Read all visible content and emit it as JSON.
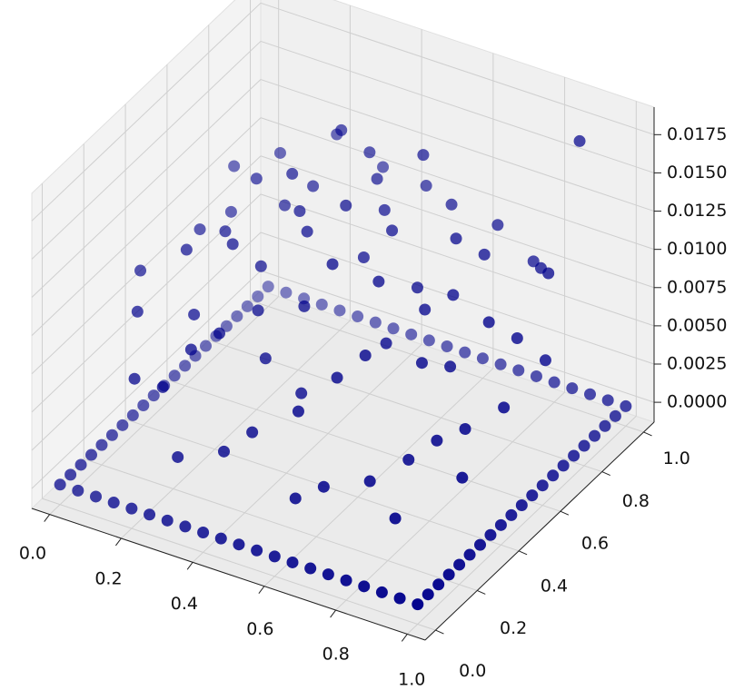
{
  "chart_data": {
    "type": "scatter3d",
    "color": "#00008b",
    "grid": true,
    "xlim": [
      -0.05,
      1.05
    ],
    "ylim": [
      -0.05,
      1.05
    ],
    "zlim": [
      -0.0013,
      0.0193
    ],
    "xticks": [
      {
        "value": 0,
        "label": "0.0"
      },
      0.2,
      0.4,
      0.6,
      0.8,
      {
        "value": 1,
        "label": "1.0"
      }
    ],
    "yticks": [
      {
        "value": 0,
        "label": "0.0"
      },
      0.2,
      0.4,
      0.6,
      0.8,
      {
        "value": 1,
        "label": "1.0"
      }
    ],
    "zticks": [
      {
        "value": 0,
        "label": "0.0000"
      },
      0.0025,
      {
        "value": 0.005,
        "label": "0.0050"
      },
      0.0075,
      {
        "value": 0.01,
        "label": "0.0100"
      },
      0.0125,
      {
        "value": 0.015,
        "label": "0.0150"
      },
      0.0175
    ],
    "x": [
      0,
      0.05,
      0.1,
      0.15,
      0.2,
      0.25,
      0.3,
      0.35,
      0.4,
      0.45,
      0.5,
      0.55,
      0.6,
      0.65,
      0.7,
      0.75,
      0.8,
      0.85,
      0.9,
      0.95,
      1,
      1,
      1,
      1,
      1,
      1,
      1,
      1,
      1,
      1,
      1,
      1,
      1,
      1,
      1,
      1,
      1,
      1,
      1,
      1,
      1,
      0.95,
      0.9,
      0.85,
      0.8,
      0.75,
      0.7,
      0.65,
      0.6,
      0.55,
      0.5,
      0.45,
      0.4,
      0.35,
      0.3,
      0.25,
      0.2,
      0.15,
      0.1,
      0.05,
      0,
      0,
      0,
      0,
      0,
      0,
      0,
      0,
      0,
      0,
      0,
      0,
      0,
      0,
      0,
      0,
      0,
      0,
      0,
      0,
      0.05,
      0.1,
      0.15,
      0.1,
      0.2,
      0.25,
      0.3,
      0.35,
      0.4,
      0.45,
      0.5,
      0.55,
      0.6,
      0.65,
      0.7,
      0.75,
      0.8,
      0.85,
      0.9,
      0.95,
      0.2,
      0.3,
      0.4,
      0.5,
      0.6,
      0.7,
      0.8,
      0.9,
      0.15,
      0.25,
      0.35,
      0.45,
      0.55,
      0.65,
      0.75,
      0.85,
      0.95,
      0.6,
      0.4,
      0.3,
      0.5,
      0.45,
      0.55,
      0.35,
      0.25,
      0.65,
      0.75,
      0.85,
      0.95,
      0.9,
      0.8,
      0.7,
      0.6,
      0.5,
      0.4,
      0.3,
      0.2,
      0.1,
      0.05,
      0.15,
      0.25,
      0.35,
      0.45,
      0.65,
      0.75,
      0.85,
      0.9,
      0.2,
      0.3,
      0.5
    ],
    "y": [
      0,
      0,
      0,
      0,
      0,
      0,
      0,
      0,
      0,
      0,
      0,
      0,
      0,
      0,
      0,
      0,
      0,
      0,
      0,
      0,
      0,
      0.05,
      0.1,
      0.15,
      0.2,
      0.25,
      0.3,
      0.35,
      0.4,
      0.45,
      0.5,
      0.55,
      0.6,
      0.65,
      0.7,
      0.75,
      0.8,
      0.85,
      0.9,
      0.95,
      1,
      1,
      1,
      1,
      1,
      1,
      1,
      1,
      1,
      1,
      1,
      1,
      1,
      1,
      1,
      1,
      1,
      1,
      1,
      1,
      1,
      0.95,
      0.9,
      0.85,
      0.8,
      0.75,
      0.7,
      0.65,
      0.6,
      0.55,
      0.5,
      0.45,
      0.4,
      0.35,
      0.3,
      0.25,
      0.2,
      0.15,
      0.1,
      0.05,
      0.3,
      0.2,
      0.35,
      0.5,
      0.15,
      0.4,
      0.25,
      0.55,
      0.3,
      0.6,
      0.45,
      0.2,
      0.5,
      0.35,
      0.7,
      0.45,
      0.3,
      0.6,
      0.8,
      0.5,
      0.6,
      0.7,
      0.8,
      0.9,
      0.85,
      0.9,
      0.9,
      0.95,
      0.8,
      0.9,
      0.95,
      0.15,
      0.65,
      0.15,
      0.2,
      0.15,
      0.3,
      0.1,
      0.1,
      0.05,
      0.3,
      0.4,
      0.8,
      0.75,
      0.65,
      0.6,
      0.75,
      0.85,
      0.7,
      0.4,
      0.5,
      0.55,
      0.3,
      0.6,
      0.5,
      0.45,
      0.3,
      0.65,
      0.75,
      0.1,
      0.2,
      0.35,
      0.75,
      0.45,
      0.6,
      0.35,
      0.65,
      0.45,
      0.6,
      0.7
    ],
    "z": [
      0,
      0,
      0,
      0,
      0,
      0,
      0,
      0,
      0,
      0,
      0,
      0,
      0,
      0,
      0,
      0,
      0,
      0,
      0,
      0,
      0,
      0,
      0,
      0,
      0,
      0,
      0,
      0,
      0,
      0,
      0,
      0,
      0,
      0,
      0,
      0,
      0,
      0,
      0,
      0,
      0,
      0,
      0,
      0,
      0,
      0,
      0,
      0,
      0,
      0,
      0,
      0,
      0,
      0,
      0,
      0,
      0,
      0,
      0,
      0,
      0,
      0,
      0,
      0,
      0,
      0,
      0,
      0,
      0,
      0,
      0,
      0,
      0,
      0,
      0,
      0,
      0,
      0,
      0,
      0,
      0.0105,
      0.0095,
      0.012,
      0.011,
      0.006,
      0.0125,
      0.009,
      0.0135,
      0.0075,
      0.014,
      0.0125,
      0.0065,
      0.0115,
      0.009,
      0.0125,
      0.008,
      0.004,
      0.0095,
      0.0105,
      0.006,
      0.0138,
      0.0128,
      0.0145,
      0.0118,
      0.012,
      0.0108,
      0.0092,
      0.0172,
      0.0125,
      0.0132,
      0.0112,
      0.005,
      0.0125,
      0.003,
      0.0035,
      0.0025,
      0.004,
      0.0025,
      0.004,
      0.0035,
      0.006,
      0.01,
      0.0155,
      0.0162,
      0.0118,
      0.0102,
      0.0112,
      0.0098,
      0.0065,
      0.0055,
      0.0075,
      0.0098,
      0.0078,
      0.011,
      0.0132,
      0.0108,
      0.0088,
      0.0102,
      0.0115,
      0.0068,
      0.0082,
      0.0096,
      0.0138,
      0.0085,
      0.0105,
      0.005,
      0.0082,
      0.0123,
      0.0149,
      0.0128
    ]
  }
}
